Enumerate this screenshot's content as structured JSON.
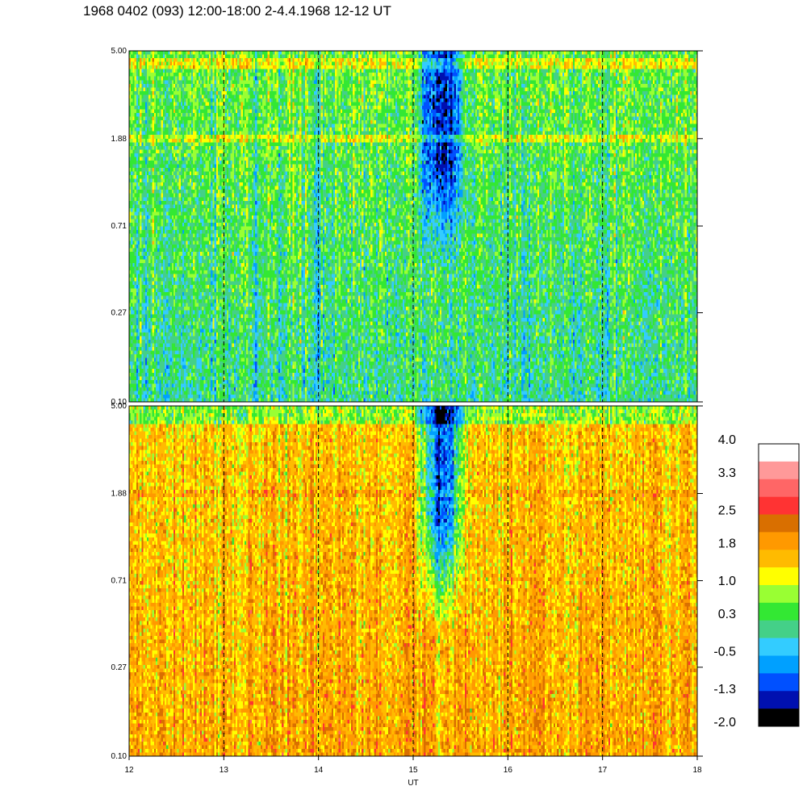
{
  "header": {
    "title": "1968 0402 (093) 12:00-18:00 2-4.4.1968  12-12 UT"
  },
  "colors": {
    "top_panel_dominant": "#3ee83e",
    "bottom_panel_dominant": "#ff9900",
    "band_highlight": "#ffff00",
    "depletion": "#0050ff"
  },
  "chart_data": {
    "type": "heatmap",
    "xlabel": "UT",
    "xlim": [
      12,
      18
    ],
    "x_ticks": [
      "12",
      "13",
      "14",
      "15",
      "16",
      "17",
      "18"
    ],
    "x_gridlines": [
      13,
      14,
      15,
      16,
      17
    ],
    "grid": "vertical dashed",
    "y_scale": "log",
    "ylim": [
      0.1,
      5.0
    ],
    "y_ticks": [
      "5.00",
      "1.88",
      "0.71",
      "0.27",
      "0.10"
    ],
    "y_tick_values": [
      5.0,
      1.88,
      0.71,
      0.27,
      0.1
    ],
    "panels": [
      {
        "position": "top",
        "y_ticks": [
          "5.00",
          "1.88",
          "0.71",
          "0.27",
          "0.10"
        ],
        "typical_level": 0.3,
        "band_y": [
          4.4,
          1.88
        ],
        "band_level": 1.0
      },
      {
        "position": "bottom",
        "y_ticks": [
          "5.00",
          "1.88",
          "0.71",
          "0.27",
          "0.10"
        ],
        "typical_level": 1.6,
        "band_y": [
          1.88
        ],
        "band_level": 1.9
      }
    ],
    "feature_interval_ut": [
      15.0,
      15.6
    ],
    "colorbar": {
      "legend_placement": "right",
      "labels": [
        "4.0",
        "3.3",
        "2.5",
        "1.8",
        "1.0",
        "0.3",
        "-0.5",
        "-1.3",
        "-2.0"
      ],
      "range": [
        -2.0,
        4.0
      ],
      "colors": [
        "#ffffff",
        "#ff9999",
        "#ff6666",
        "#ff3333",
        "#d96f00",
        "#ff9900",
        "#ffbb00",
        "#ffff00",
        "#99ff33",
        "#33e833",
        "#44d088",
        "#33ccff",
        "#00a0ff",
        "#0050ff",
        "#0010b0",
        "#000000"
      ]
    }
  }
}
